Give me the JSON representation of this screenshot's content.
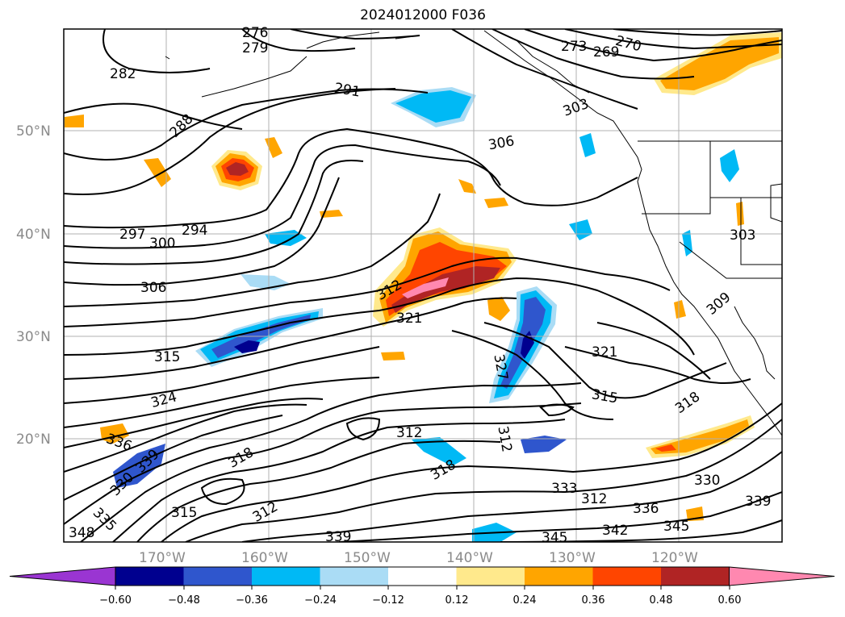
{
  "title": "2024012000 F036",
  "lat_labels": [
    "50°N",
    "40°N",
    "30°N",
    "20°N"
  ],
  "lon_labels": [
    "170°W",
    "160°W",
    "150°W",
    "140°W",
    "130°W",
    "120°W"
  ],
  "contour_labels": [
    "276",
    "279",
    "282",
    "288",
    "291",
    "297",
    "300",
    "294",
    "306",
    "306",
    "312",
    "321",
    "315",
    "324",
    "330",
    "336",
    "339",
    "335",
    "348",
    "315",
    "318",
    "312",
    "318",
    "312",
    "327",
    "312",
    "321",
    "315",
    "318",
    "330",
    "333",
    "336",
    "342",
    "345",
    "339",
    "339",
    "345",
    "270",
    "273",
    "269",
    "303",
    "303",
    "309",
    "312"
  ],
  "colorbar": {
    "ticks": [
      "−0.60",
      "−0.48",
      "−0.36",
      "−0.24",
      "−0.12",
      "0.12",
      "0.24",
      "0.36",
      "0.48",
      "0.60"
    ],
    "colors": [
      "#9a35d2",
      "#00008f",
      "#2f56cd",
      "#00b9f5",
      "#aadcf5",
      "#ffffff",
      "#ffe98c",
      "#ffa500",
      "#ff4500",
      "#b02424",
      "#ff88b0"
    ]
  },
  "palette": {
    "deep_blue": "#00008f",
    "mid_blue": "#2f56cd",
    "cyan": "#00b9f5",
    "light_blue": "#aadcf5",
    "light_yellow": "#ffe98c",
    "orange": "#ffa500",
    "red_orange": "#ff4500",
    "dark_red": "#b02424",
    "pink": "#ff88b0",
    "grid": "#b0b0b0",
    "label_gray": "#8a8a8a"
  }
}
